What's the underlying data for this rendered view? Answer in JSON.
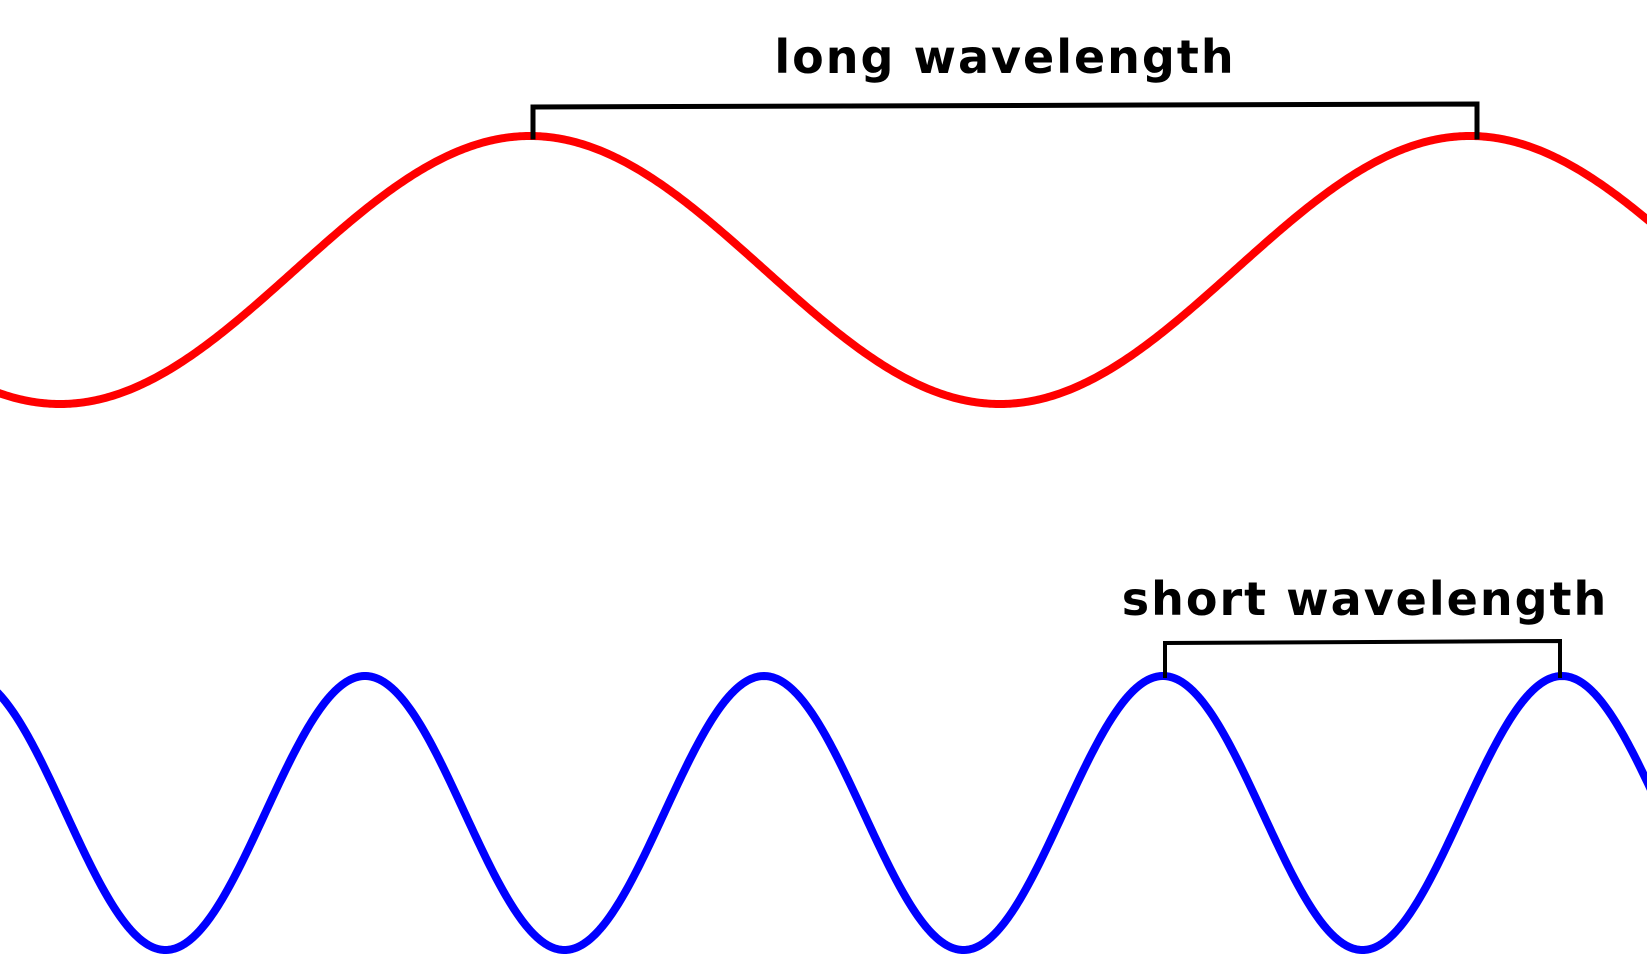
{
  "colors": {
    "long_wave": "#ff0000",
    "short_wave": "#0000ff",
    "annotation": "#000000",
    "background": "#ffffff"
  },
  "long_wave": {
    "label": "long wavelength"
  },
  "short_wave": {
    "label": "short wavelength"
  }
}
